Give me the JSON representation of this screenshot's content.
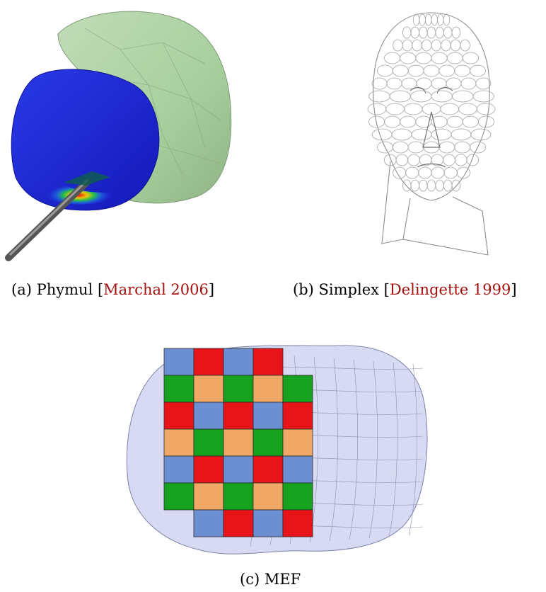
{
  "figure": {
    "panels": [
      {
        "tag": "(a)",
        "name": "Phymul",
        "cite": "Marchal 2006"
      },
      {
        "tag": "(b)",
        "name": "Simplex",
        "cite": "Delingette 1999"
      },
      {
        "tag": "(c)",
        "name": "MEF",
        "cite": ""
      }
    ]
  },
  "colors": {
    "citation": "#a3100e",
    "prostate_surface": "#a7cf9d",
    "deformed_organ": "#1a26d8",
    "tet_blue": "#6b8fd0",
    "tet_orange": "#f0a866",
    "tet_red": "#e8141a",
    "tet_green": "#16a21e",
    "envelope": "#c9cdee"
  },
  "images": [
    {
      "panel": "a",
      "subject": "tool-needle-and-organ-render"
    },
    {
      "panel": "b",
      "subject": "simplex-head-mesh"
    },
    {
      "panel": "c",
      "subject": "fem-hexahedral-mesh"
    }
  ]
}
